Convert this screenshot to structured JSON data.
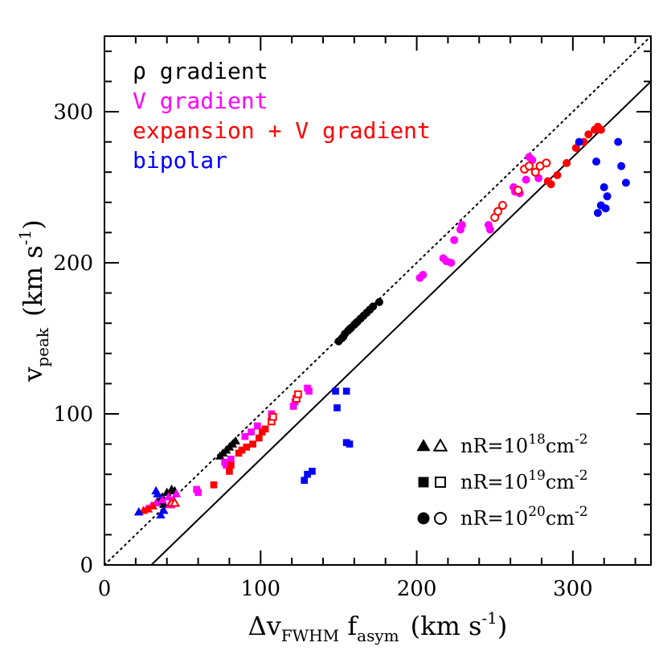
{
  "chart_data": {
    "type": "scatter",
    "xlabel": {
      "main": "Δv",
      "sub": "FWHM",
      "mid": " f",
      "sub2": "asym",
      "unit": "(km s",
      "sup": "-1",
      "end": ")"
    },
    "ylabel": {
      "main": "v",
      "sub": "peak",
      "unit": "(km s",
      "sup": "-1",
      "end": ")"
    },
    "xlim": [
      0,
      350
    ],
    "ylim": [
      0,
      350
    ],
    "xticks": [
      0,
      100,
      200,
      300
    ],
    "yticks": [
      0,
      100,
      200,
      300
    ],
    "xtick_labels": [
      "0",
      "100",
      "200",
      "300"
    ],
    "ytick_labels": [
      "0",
      "100",
      "200",
      "300"
    ],
    "grid": false,
    "reference_lines": [
      {
        "style": "dotted",
        "points": [
          [
            0,
            0
          ],
          [
            350,
            350
          ]
        ]
      },
      {
        "style": "solid",
        "points": [
          [
            30,
            0
          ],
          [
            350,
            320
          ]
        ]
      }
    ],
    "legend": {
      "placement": "top-left",
      "entries": [
        {
          "label": "ρ gradient",
          "color": "#000000"
        },
        {
          "label": "V gradient",
          "color": "#ff00ff"
        },
        {
          "label": "expansion + V gradient",
          "color": "#ff0000"
        },
        {
          "label": "bipolar",
          "color": "#0000ff"
        }
      ]
    },
    "marker_key": {
      "placement": "bottom-right",
      "entries": [
        {
          "shape": "triangle",
          "prefix": "nR=10",
          "sup": "18",
          "unit": "cm",
          "unit_sup": "-2"
        },
        {
          "shape": "square",
          "prefix": "nR=10",
          "sup": "19",
          "unit": "cm",
          "unit_sup": "-2"
        },
        {
          "shape": "circle",
          "prefix": "nR=10",
          "sup": "20",
          "unit": "cm",
          "unit_sup": "-2"
        }
      ]
    },
    "series": [
      {
        "color": "#000000",
        "points": [
          [
            34,
            42,
            "tri",
            true
          ],
          [
            37,
            45,
            "tri",
            true
          ],
          [
            40,
            48,
            "tri",
            true
          ],
          [
            43,
            50,
            "tri",
            true
          ],
          [
            45,
            49,
            "tri",
            true
          ],
          [
            38,
            40,
            "tri",
            true
          ],
          [
            74,
            72,
            "tri",
            true
          ],
          [
            76,
            74,
            "tri",
            true
          ],
          [
            78,
            76,
            "tri",
            true
          ],
          [
            80,
            78,
            "tri",
            true
          ],
          [
            82,
            80,
            "tri",
            true
          ],
          [
            84,
            82,
            "tri",
            true
          ],
          [
            150,
            148,
            "circ",
            true
          ],
          [
            152,
            150,
            "circ",
            true
          ],
          [
            154,
            153,
            "circ",
            true
          ],
          [
            156,
            155,
            "circ",
            true
          ],
          [
            158,
            157,
            "circ",
            true
          ],
          [
            160,
            159,
            "circ",
            true
          ],
          [
            162,
            161,
            "circ",
            true
          ],
          [
            164,
            163,
            "circ",
            true
          ],
          [
            166,
            165,
            "circ",
            true
          ],
          [
            168,
            167,
            "circ",
            true
          ],
          [
            170,
            169,
            "circ",
            true
          ],
          [
            172,
            171,
            "circ",
            true
          ],
          [
            176,
            174,
            "circ",
            true
          ],
          [
            153,
            151,
            "circ",
            true
          ],
          [
            157,
            156,
            "circ",
            true
          ],
          [
            161,
            160,
            "circ",
            true
          ]
        ]
      },
      {
        "color": "#ff00ff",
        "points": [
          [
            27,
            37,
            "tri",
            true
          ],
          [
            30,
            39,
            "tri",
            true
          ],
          [
            33,
            41,
            "tri",
            true
          ],
          [
            37,
            43,
            "tri",
            true
          ],
          [
            41,
            45,
            "tri",
            true
          ],
          [
            46,
            47,
            "tri",
            true
          ],
          [
            59,
            50,
            "sq",
            true
          ],
          [
            60,
            48,
            "sq",
            true
          ],
          [
            77,
            68,
            "sq",
            true
          ],
          [
            78,
            66,
            "sq",
            true
          ],
          [
            81,
            70,
            "sq",
            true
          ],
          [
            90,
            85,
            "sq",
            true
          ],
          [
            94,
            88,
            "sq",
            true
          ],
          [
            98,
            92,
            "sq",
            true
          ],
          [
            107,
            100,
            "sq",
            true
          ],
          [
            121,
            105,
            "sq",
            true
          ],
          [
            122,
            108,
            "sq",
            true
          ],
          [
            130,
            117,
            "sq",
            true
          ],
          [
            131,
            115,
            "sq",
            true
          ],
          [
            202,
            190,
            "circ",
            true
          ],
          [
            204,
            192,
            "circ",
            true
          ],
          [
            217,
            203,
            "circ",
            true
          ],
          [
            219,
            201,
            "circ",
            true
          ],
          [
            222,
            200,
            "circ",
            true
          ],
          [
            224,
            215,
            "circ",
            true
          ],
          [
            228,
            222,
            "circ",
            true
          ],
          [
            229,
            225,
            "circ",
            true
          ],
          [
            246,
            225,
            "circ",
            true
          ],
          [
            247,
            222,
            "circ",
            true
          ],
          [
            262,
            250,
            "circ",
            true
          ],
          [
            263,
            247,
            "circ",
            true
          ],
          [
            266,
            246,
            "circ",
            true
          ],
          [
            270,
            255,
            "circ",
            true
          ],
          [
            272,
            270,
            "circ",
            true
          ],
          [
            274,
            268,
            "circ",
            true
          ],
          [
            276,
            260,
            "circ",
            true
          ],
          [
            278,
            256,
            "circ",
            true
          ],
          [
            42,
            40,
            "tri",
            false
          ],
          [
            44,
            42,
            "tri",
            false
          ]
        ]
      },
      {
        "color": "#ff0000",
        "points": [
          [
            22,
            35,
            "tri",
            true
          ],
          [
            25,
            36,
            "tri",
            true
          ],
          [
            28,
            37,
            "tri",
            true
          ],
          [
            31,
            39,
            "tri",
            true
          ],
          [
            43,
            41,
            "tri",
            false
          ],
          [
            45,
            41,
            "tri",
            false
          ],
          [
            70,
            53,
            "sq",
            true
          ],
          [
            80,
            62,
            "sq",
            true
          ],
          [
            81,
            66,
            "sq",
            true
          ],
          [
            86,
            74,
            "sq",
            true
          ],
          [
            88,
            76,
            "sq",
            true
          ],
          [
            91,
            78,
            "sq",
            true
          ],
          [
            95,
            80,
            "sq",
            true
          ],
          [
            99,
            84,
            "sq",
            true
          ],
          [
            101,
            88,
            "sq",
            true
          ],
          [
            103,
            90,
            "sq",
            true
          ],
          [
            107,
            95,
            "sq",
            false
          ],
          [
            108,
            98,
            "sq",
            false
          ],
          [
            123,
            110,
            "sq",
            false
          ],
          [
            124,
            113,
            "sq",
            false
          ],
          [
            250,
            230,
            "circ",
            false
          ],
          [
            252,
            234,
            "circ",
            false
          ],
          [
            255,
            238,
            "circ",
            false
          ],
          [
            265,
            248,
            "circ",
            false
          ],
          [
            269,
            262,
            "circ",
            false
          ],
          [
            272,
            264,
            "circ",
            false
          ],
          [
            276,
            260,
            "circ",
            false
          ],
          [
            279,
            264,
            "circ",
            false
          ],
          [
            283,
            266,
            "circ",
            false
          ],
          [
            284,
            254,
            "circ",
            true
          ],
          [
            286,
            252,
            "circ",
            true
          ],
          [
            290,
            258,
            "circ",
            true
          ],
          [
            296,
            266,
            "circ",
            true
          ],
          [
            302,
            276,
            "circ",
            true
          ],
          [
            307,
            280,
            "circ",
            true
          ],
          [
            310,
            285,
            "circ",
            true
          ],
          [
            314,
            288,
            "circ",
            true
          ],
          [
            316,
            290,
            "circ",
            true
          ],
          [
            318,
            288,
            "circ",
            true
          ]
        ]
      },
      {
        "color": "#0000ff",
        "points": [
          [
            22,
            35,
            "tri",
            true
          ],
          [
            33,
            49,
            "tri",
            true
          ],
          [
            34,
            47,
            "tri",
            true
          ],
          [
            36,
            33,
            "tri",
            true
          ],
          [
            38,
            36,
            "tri",
            true
          ],
          [
            128,
            56,
            "sq",
            true
          ],
          [
            130,
            60,
            "sq",
            true
          ],
          [
            133,
            62,
            "sq",
            true
          ],
          [
            148,
            115,
            "sq",
            true
          ],
          [
            149,
            104,
            "sq",
            true
          ],
          [
            155,
            115,
            "sq",
            true
          ],
          [
            155,
            81,
            "sq",
            true
          ],
          [
            157,
            80,
            "sq",
            true
          ],
          [
            304,
            280,
            "circ",
            true
          ],
          [
            315,
            267,
            "circ",
            true
          ],
          [
            316,
            233,
            "circ",
            true
          ],
          [
            318,
            238,
            "circ",
            true
          ],
          [
            320,
            250,
            "circ",
            true
          ],
          [
            321,
            236,
            "circ",
            true
          ],
          [
            322,
            244,
            "circ",
            true
          ],
          [
            329,
            280,
            "circ",
            true
          ],
          [
            331,
            264,
            "circ",
            true
          ],
          [
            334,
            253,
            "circ",
            true
          ]
        ]
      }
    ]
  }
}
